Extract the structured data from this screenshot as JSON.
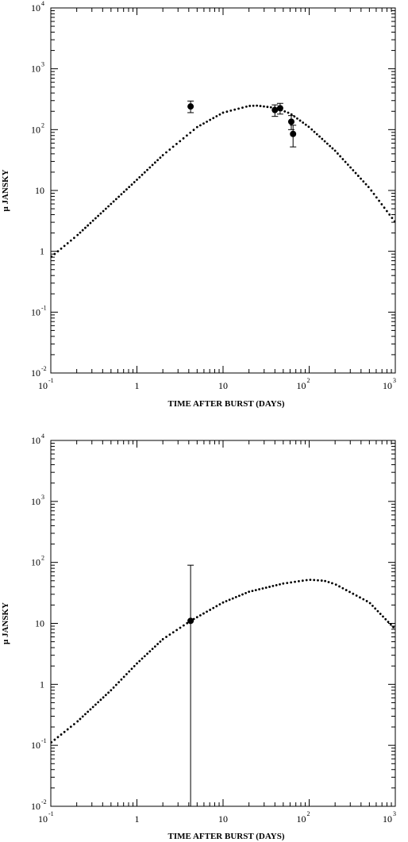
{
  "chart_data": [
    {
      "type": "scatter",
      "xlabel": "TIME AFTER BURST (DAYS)",
      "ylabel": "μ JANSKY",
      "xscale": "log",
      "yscale": "log",
      "xlim": [
        0.1,
        1000
      ],
      "ylim": [
        0.01,
        10000
      ],
      "x_ticks": [
        {
          "value": 0.1,
          "base": "10",
          "exp": "-1"
        },
        {
          "value": 1,
          "base": "1",
          "exp": ""
        },
        {
          "value": 10,
          "base": "10",
          "exp": ""
        },
        {
          "value": 100,
          "base": "10",
          "exp": "2"
        },
        {
          "value": 1000,
          "base": "10",
          "exp": "3"
        }
      ],
      "y_ticks": [
        {
          "value": 0.01,
          "base": "10",
          "exp": "-2"
        },
        {
          "value": 0.1,
          "base": "10",
          "exp": "-1"
        },
        {
          "value": 1,
          "base": "1",
          "exp": ""
        },
        {
          "value": 10,
          "base": "10",
          "exp": ""
        },
        {
          "value": 100,
          "base": "10",
          "exp": "2"
        },
        {
          "value": 1000,
          "base": "10",
          "exp": "3"
        },
        {
          "value": 10000,
          "base": "10",
          "exp": "4"
        }
      ],
      "grid": false,
      "series": [
        {
          "kind": "model",
          "style": "dotted",
          "x": [
            0.1,
            0.2,
            0.5,
            1,
            2,
            5,
            10,
            20,
            25,
            40,
            60,
            100,
            200,
            500,
            1000
          ],
          "y": [
            0.8,
            1.8,
            6,
            15,
            38,
            110,
            190,
            245,
            248,
            228,
            185,
            110,
            45,
            11,
            3
          ]
        },
        {
          "kind": "observed",
          "style": "points",
          "x": [
            4.2,
            40,
            46,
            62,
            65
          ],
          "y": [
            240,
            210,
            225,
            135,
            85
          ],
          "y_err_low": [
            190,
            165,
            180,
            100,
            52
          ],
          "y_err_high": [
            295,
            255,
            270,
            170,
            118
          ]
        }
      ]
    },
    {
      "type": "scatter",
      "xlabel": "TIME AFTER BURST (DAYS)",
      "ylabel": "μ JANSKY",
      "xscale": "log",
      "yscale": "log",
      "xlim": [
        0.1,
        1000
      ],
      "ylim": [
        0.01,
        10000
      ],
      "x_ticks": [
        {
          "value": 0.1,
          "base": "10",
          "exp": "-1"
        },
        {
          "value": 1,
          "base": "1",
          "exp": ""
        },
        {
          "value": 10,
          "base": "10",
          "exp": ""
        },
        {
          "value": 100,
          "base": "10",
          "exp": "2"
        },
        {
          "value": 1000,
          "base": "10",
          "exp": "3"
        }
      ],
      "y_ticks": [
        {
          "value": 0.01,
          "base": "10",
          "exp": "-2"
        },
        {
          "value": 0.1,
          "base": "10",
          "exp": "-1"
        },
        {
          "value": 1,
          "base": "1",
          "exp": ""
        },
        {
          "value": 10,
          "base": "10",
          "exp": ""
        },
        {
          "value": 100,
          "base": "10",
          "exp": "2"
        },
        {
          "value": 1000,
          "base": "10",
          "exp": "3"
        },
        {
          "value": 10000,
          "base": "10",
          "exp": "4"
        }
      ],
      "grid": false,
      "series": [
        {
          "kind": "model",
          "style": "dotted",
          "x": [
            0.1,
            0.2,
            0.5,
            1,
            2,
            4.2,
            10,
            20,
            50,
            100,
            150,
            200,
            500,
            1000
          ],
          "y": [
            0.11,
            0.24,
            0.8,
            2.2,
            5.5,
            11,
            22,
            33,
            45,
            52,
            50,
            44,
            22,
            8
          ]
        },
        {
          "kind": "observed",
          "style": "points",
          "x": [
            4.2
          ],
          "y": [
            11
          ],
          "y_err_low": [
            0.01
          ],
          "y_err_high": [
            90
          ]
        }
      ]
    }
  ]
}
